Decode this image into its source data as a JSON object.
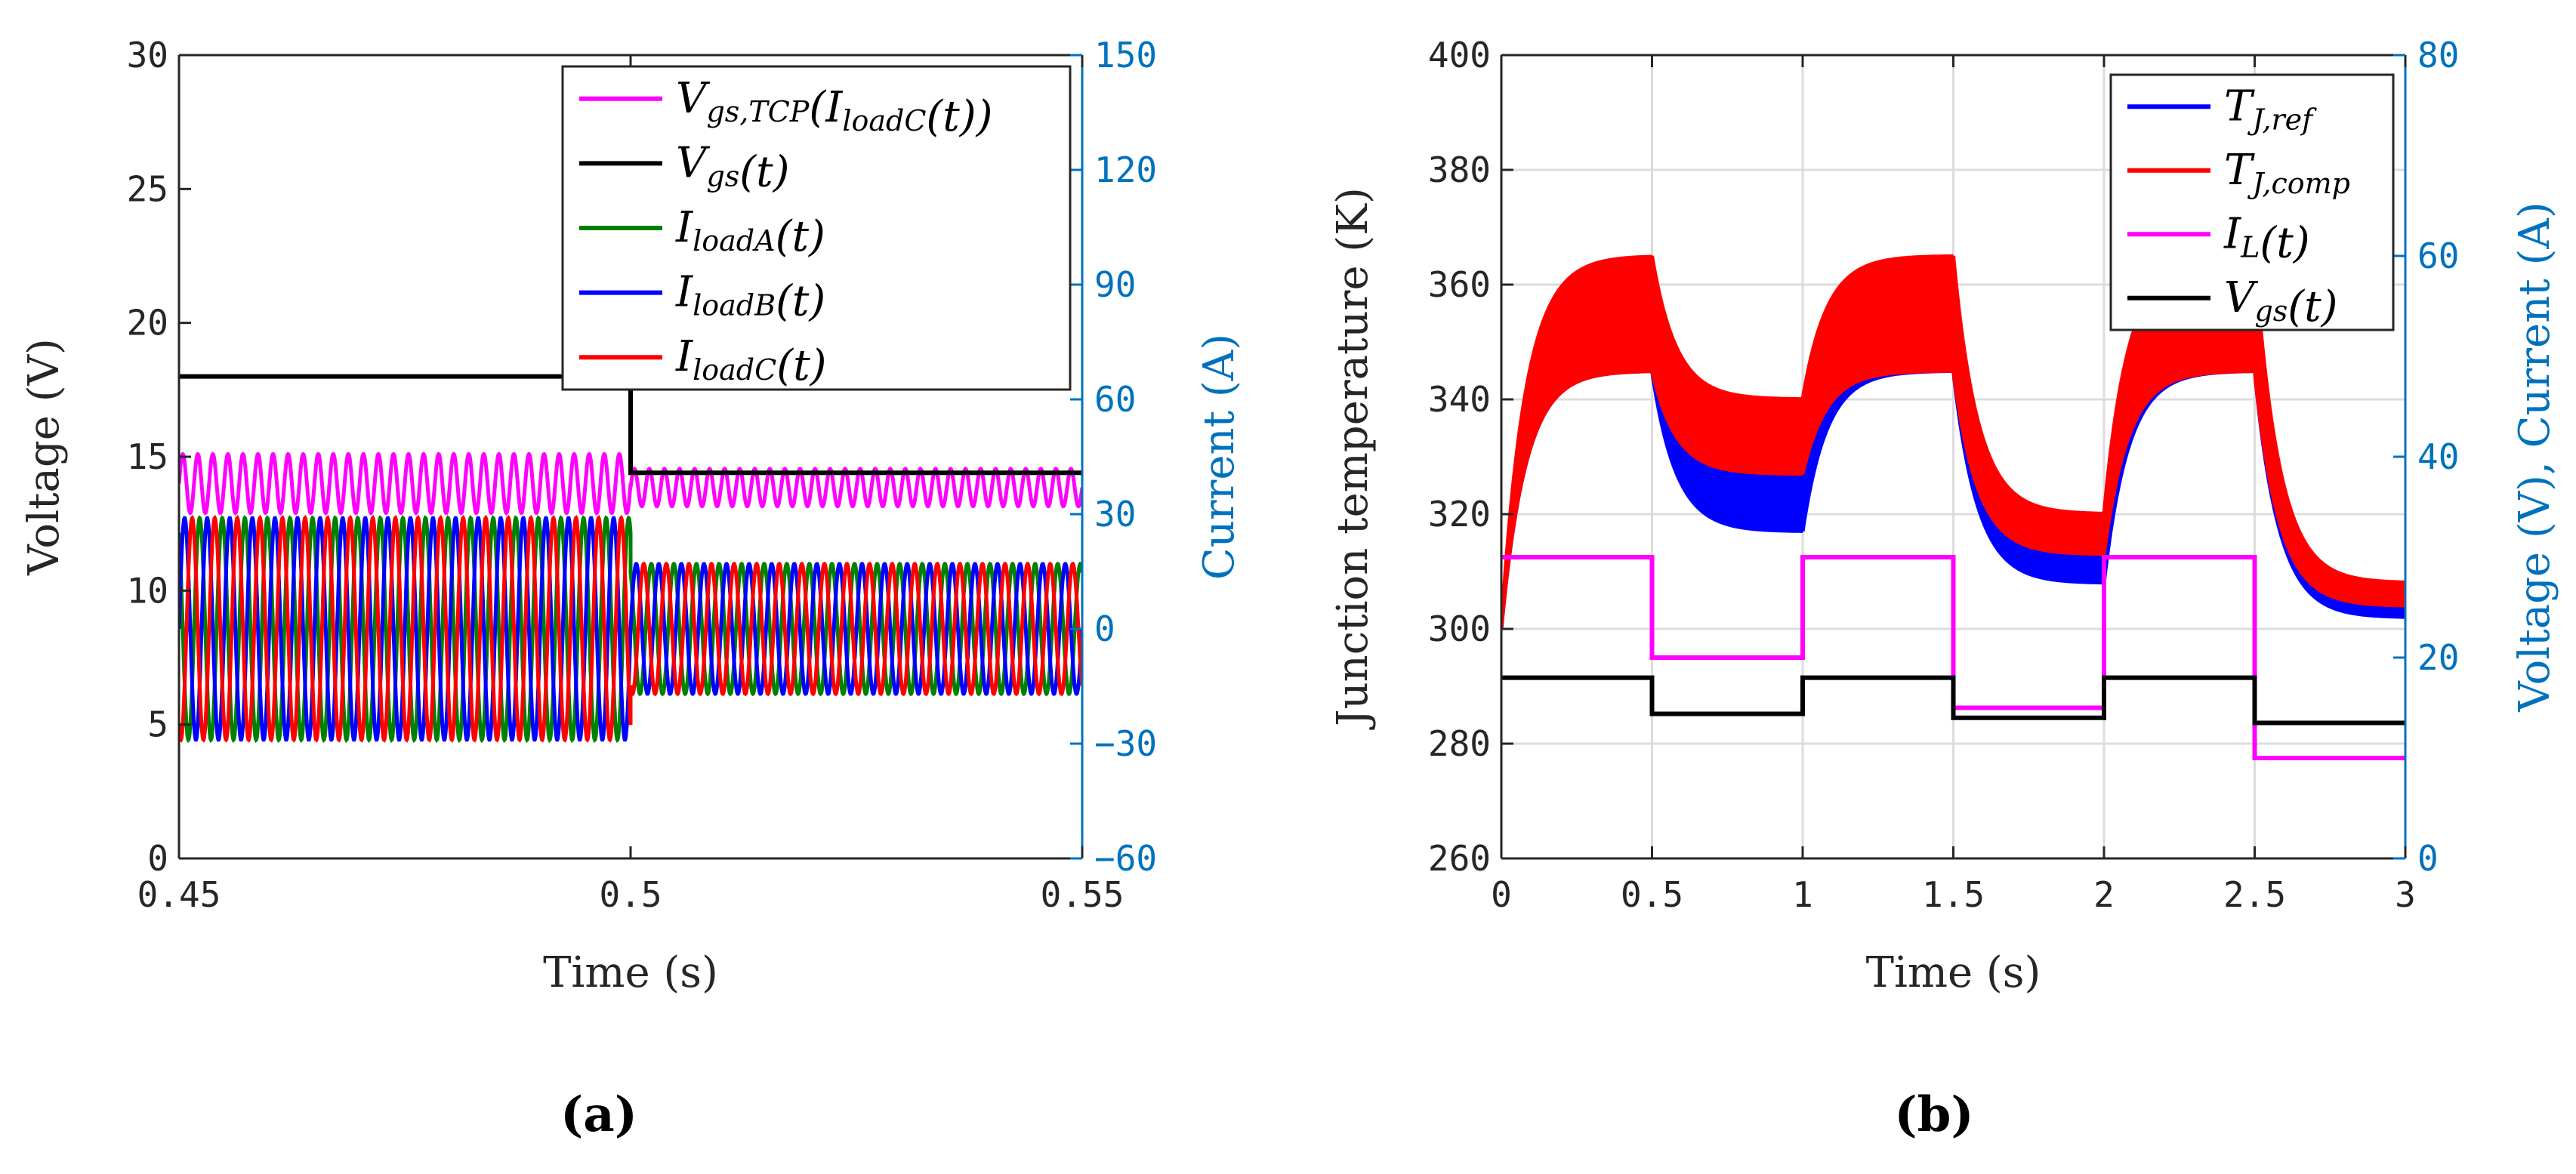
{
  "chart_data": [
    {
      "type": "line",
      "panel_label": "(a)",
      "xlabel": "Time (s)",
      "ylabel": "Voltage (V)",
      "ylabel_right": "Current (A)",
      "xlim": [
        0.45,
        0.55
      ],
      "ylim": [
        0,
        30
      ],
      "ylim_right": [
        -60,
        150
      ],
      "x_ticks": [
        "0.45",
        "0.5",
        "0.55"
      ],
      "y_ticks": [
        "0",
        "5",
        "10",
        "15",
        "20",
        "25",
        "30"
      ],
      "y_ticks_right": [
        "−60",
        "−30",
        "0",
        "30",
        "60",
        "90",
        "120",
        "150"
      ],
      "grid": false,
      "legend": "top-right",
      "series": [
        {
          "legend": {
            "main": "V",
            "sub": "gs,TCP",
            "tail": "(I",
            "tailsub": "loadC",
            "end": "(t))"
          },
          "color": "#ff00ff",
          "axis": "left",
          "kind": "oscillating",
          "frequency_hz": 600,
          "segments": [
            {
              "x": [
                0.45,
                0.5
              ],
              "center": 14.0,
              "amplitude": 1.1
            },
            {
              "x": [
                0.5,
                0.55
              ],
              "center": 13.85,
              "amplitude": 0.7
            }
          ]
        },
        {
          "legend": {
            "main": "V",
            "sub": "gs",
            "tail": "(t)"
          },
          "color": "#000000",
          "axis": "left",
          "kind": "step",
          "x": [
            0.45,
            0.5,
            0.5,
            0.55
          ],
          "y": [
            18.0,
            18.0,
            14.4,
            14.4
          ]
        },
        {
          "legend": {
            "main": "I",
            "sub": "loadA",
            "tail": "(t)"
          },
          "color": "#008000",
          "axis": "right",
          "kind": "sinusoid",
          "frequency_hz": 400,
          "phase_deg": 120,
          "segments": [
            {
              "x": [
                0.45,
                0.5
              ],
              "amplitude": 29
            },
            {
              "x": [
                0.5,
                0.55
              ],
              "amplitude": 17
            }
          ]
        },
        {
          "legend": {
            "main": "I",
            "sub": "loadB",
            "tail": "(t)"
          },
          "color": "#0000ff",
          "axis": "right",
          "kind": "sinusoid",
          "frequency_hz": 400,
          "phase_deg": 0,
          "segments": [
            {
              "x": [
                0.45,
                0.5
              ],
              "amplitude": 29
            },
            {
              "x": [
                0.5,
                0.55
              ],
              "amplitude": 17
            }
          ]
        },
        {
          "legend": {
            "main": "I",
            "sub": "loadC",
            "tail": "(t)"
          },
          "color": "#ff0000",
          "axis": "right",
          "kind": "sinusoid",
          "frequency_hz": 400,
          "phase_deg": 240,
          "segments": [
            {
              "x": [
                0.45,
                0.5
              ],
              "amplitude": 29
            },
            {
              "x": [
                0.5,
                0.55
              ],
              "amplitude": 17
            }
          ]
        }
      ]
    },
    {
      "type": "line",
      "panel_label": "(b)",
      "xlabel": "Time (s)",
      "ylabel": "Junction temperature (K)",
      "ylabel_right": "Voltage (V),  Current (A)",
      "xlim": [
        0,
        3
      ],
      "ylim": [
        260,
        400
      ],
      "ylim_right": [
        0,
        80
      ],
      "x_ticks": [
        "0",
        "0.5",
        "1",
        "1.5",
        "2",
        "2.5",
        "3"
      ],
      "y_ticks": [
        "260",
        "280",
        "300",
        "320",
        "340",
        "360",
        "380",
        "400"
      ],
      "y_ticks_right": [
        "0",
        "20",
        "40",
        "60",
        "80"
      ],
      "grid": true,
      "legend": "top-right",
      "series": [
        {
          "legend": {
            "main": "T",
            "sub": "J,ref"
          },
          "color": "#0000ff",
          "axis": "left",
          "kind": "thermal_band",
          "start_value": 300,
          "time_constant_s": 0.08,
          "segments": [
            {
              "x": [
                0,
                0.5
              ],
              "upper": 345,
              "lower": 345
            },
            {
              "x": [
                0.5,
                1.0
              ],
              "upper": 330,
              "lower": 317
            },
            {
              "x": [
                1.0,
                1.5
              ],
              "upper": 345,
              "lower": 345
            },
            {
              "x": [
                1.5,
                2.0
              ],
              "upper": 316,
              "lower": 308
            },
            {
              "x": [
                2.0,
                2.5
              ],
              "upper": 345,
              "lower": 345
            },
            {
              "x": [
                2.5,
                3.0
              ],
              "upper": 305,
              "lower": 302
            }
          ]
        },
        {
          "legend": {
            "main": "T",
            "sub": "J,comp"
          },
          "color": "#ff0000",
          "axis": "left",
          "kind": "thermal_band",
          "start_value": 300,
          "time_constant_s": 0.08,
          "segments": [
            {
              "x": [
                0,
                0.5
              ],
              "upper": 365,
              "lower": 345
            },
            {
              "x": [
                0.5,
                1.0
              ],
              "upper": 340,
              "lower": 327
            },
            {
              "x": [
                1.0,
                1.5
              ],
              "upper": 365,
              "lower": 345
            },
            {
              "x": [
                1.5,
                2.0
              ],
              "upper": 320,
              "lower": 313
            },
            {
              "x": [
                2.0,
                2.5
              ],
              "upper": 365,
              "lower": 345
            },
            {
              "x": [
                2.5,
                3.0
              ],
              "upper": 308,
              "lower": 304
            }
          ]
        },
        {
          "legend": {
            "main": "I",
            "sub": "L",
            "tail": "(t)"
          },
          "color": "#ff00ff",
          "axis": "right",
          "kind": "step",
          "x": [
            0,
            0.5,
            0.5,
            1.0,
            1.0,
            1.5,
            1.5,
            2.0,
            2.0,
            2.5,
            2.5,
            3.0
          ],
          "y": [
            30,
            30,
            20,
            20,
            30,
            30,
            15,
            15,
            30,
            30,
            10,
            10
          ]
        },
        {
          "legend": {
            "main": "V",
            "sub": "gs",
            "tail": "(t)"
          },
          "color": "#000000",
          "axis": "right",
          "kind": "step",
          "x": [
            0,
            0.5,
            0.5,
            1.0,
            1.0,
            1.5,
            1.5,
            2.0,
            2.0,
            2.5,
            2.5,
            3.0
          ],
          "y": [
            18,
            18,
            14.4,
            14.4,
            18,
            18,
            14,
            14,
            18,
            18,
            13.5,
            13.5
          ]
        }
      ]
    }
  ],
  "colors": {
    "right_axis": "#0072bd",
    "grid": "#dcdcdc",
    "axis": "#262626"
  }
}
